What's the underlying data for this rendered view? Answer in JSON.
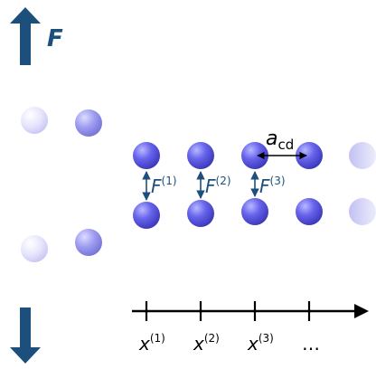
{
  "labels": {
    "force": "F",
    "force_1": "F",
    "force_1_sup": "(1)",
    "force_2": "F",
    "force_2_sup": "(2)",
    "force_3": "F",
    "force_3_sup": "(3)",
    "spacing": "a",
    "spacing_sub": "cd",
    "x1": "x",
    "x1_sup": "(1)",
    "x2": "x",
    "x2_sup": "(2)",
    "x3": "x",
    "x3_sup": "(3)",
    "ellipsis": "…"
  },
  "colors": {
    "arrow_blue": "#1d4f7c",
    "atom_blue": "#5e5be6",
    "label_blue": "#1d4f7c",
    "axis": "#000000"
  }
}
